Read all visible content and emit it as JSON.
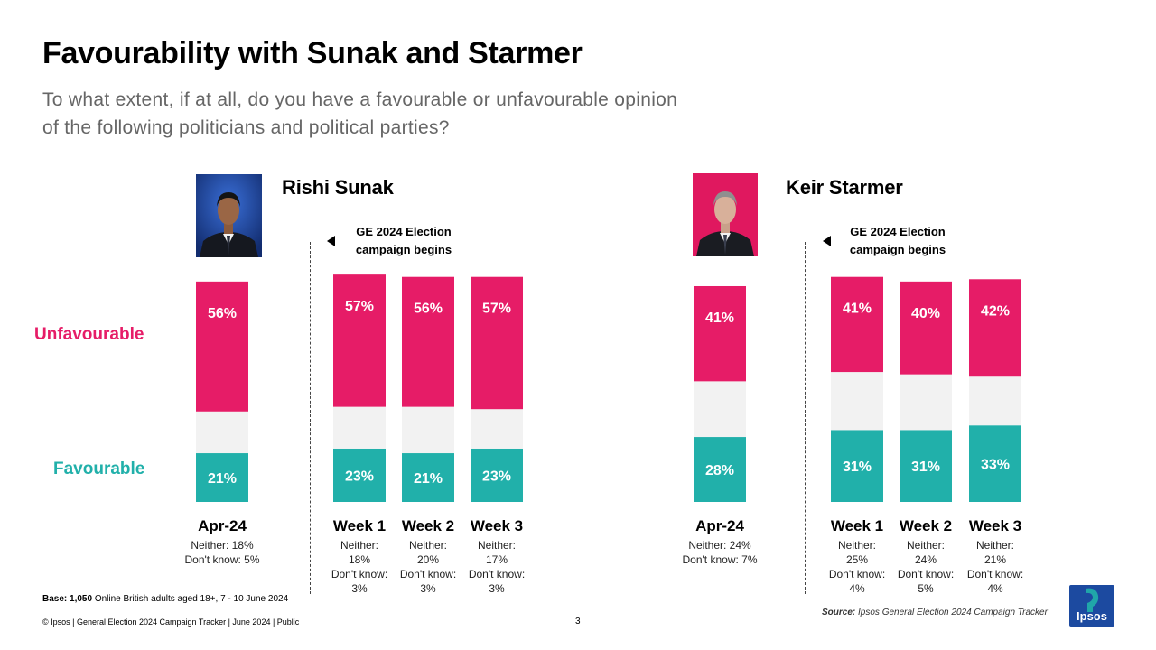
{
  "title": "Favourability with Sunak and Starmer",
  "subtitle": "To what extent, if at all, do you have a favourable or unfavourable opinion of the following politicians and political parties?",
  "row_labels": {
    "unfavourable": "Unfavourable",
    "favourable": "Favourable"
  },
  "colors": {
    "unfavourable": "#e61c67",
    "favourable": "#21b0aa",
    "neither": "#f2f2f2"
  },
  "campaign_note": {
    "line1": "GE 2024  Election",
    "line2": "campaign begins"
  },
  "footer": {
    "base_bold": "Base: 1,050",
    "base_text": " Online British adults aged 18+, 7 - 10 June 2024",
    "copyright": "© Ipsos | General Election 2024 Campaign Tracker | June 2024 | Public",
    "page_number": "3",
    "source_label": "Source:",
    "source_text": " Ipsos General Election 2024 Campaign Tracker",
    "logo_text": "Ipsos"
  },
  "chart_data": [
    {
      "type": "bar",
      "stacked": true,
      "title": "Rishi Sunak",
      "categories": [
        "Apr-24",
        "Week 1",
        "Week 2",
        "Week 3"
      ],
      "series": [
        {
          "name": "Favourable",
          "values": [
            21,
            23,
            21,
            23
          ]
        },
        {
          "name": "Neither",
          "values": [
            18,
            18,
            20,
            17
          ]
        },
        {
          "name": "Unfavourable",
          "values": [
            56,
            57,
            56,
            57
          ]
        }
      ],
      "favourable_labels": [
        "21%",
        "23%",
        "21%",
        "23%"
      ],
      "unfavourable_labels": [
        "56%",
        "57%",
        "56%",
        "57%"
      ],
      "notes": [
        [
          "Neither: 18%",
          "Don't know: 5%"
        ],
        [
          "Neither:",
          "18%",
          "Don't know:",
          "3%"
        ],
        [
          "Neither:",
          "20%",
          "Don't know:",
          "3%"
        ],
        [
          "Neither:",
          "17%",
          "Don't know:",
          "3%"
        ]
      ]
    },
    {
      "type": "bar",
      "stacked": true,
      "title": "Keir Starmer",
      "categories": [
        "Apr-24",
        "Week 1",
        "Week 2",
        "Week 3"
      ],
      "series": [
        {
          "name": "Favourable",
          "values": [
            28,
            31,
            31,
            33
          ]
        },
        {
          "name": "Neither",
          "values": [
            24,
            25,
            24,
            21
          ]
        },
        {
          "name": "Unfavourable",
          "values": [
            41,
            41,
            40,
            42
          ]
        }
      ],
      "favourable_labels": [
        "28%",
        "31%",
        "31%",
        "33%"
      ],
      "unfavourable_labels": [
        "41%",
        "41%",
        "40%",
        "42%"
      ],
      "notes": [
        [
          "Neither: 24%",
          "Don't know: 7%"
        ],
        [
          "Neither:",
          "25%",
          "Don't know:",
          "4%"
        ],
        [
          "Neither:",
          "24%",
          "Don't know:",
          "5%"
        ],
        [
          "Neither:",
          "21%",
          "Don't know:",
          "4%"
        ]
      ]
    }
  ]
}
